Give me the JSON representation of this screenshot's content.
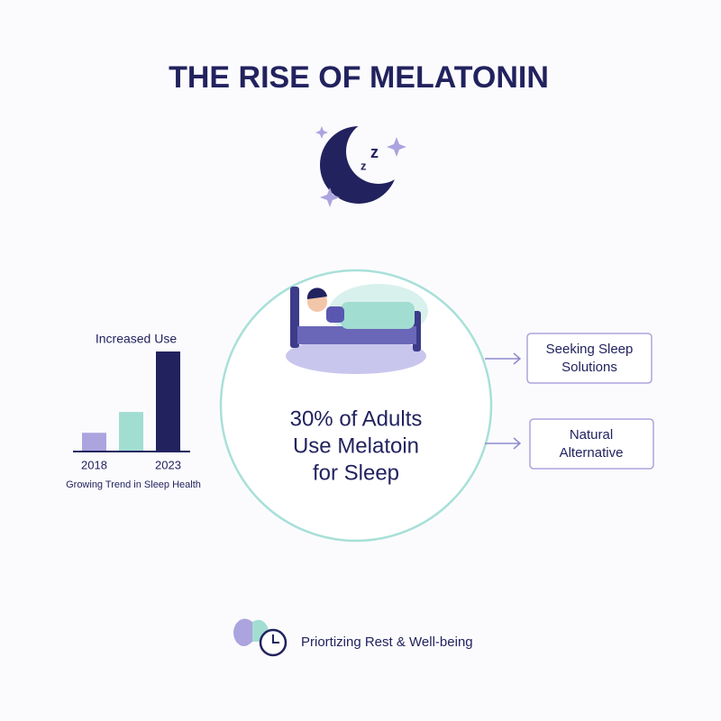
{
  "title": "THE RISE OF MELATONIN",
  "chart_data": {
    "type": "bar",
    "title": "Increased Use",
    "categories": [
      "2018",
      null,
      "2023"
    ],
    "values": [
      18,
      39,
      100
    ],
    "colors": [
      "#aba4de",
      "#a2ddd2",
      "#22225f"
    ],
    "ylim": [
      0,
      100
    ],
    "caption": "Growing Trend in Sleep Health"
  },
  "center": {
    "lines": [
      "30% of Adults",
      "Use Melatoin",
      "for Sleep"
    ]
  },
  "boxes": [
    [
      "Seeking Sleep",
      "Solutions"
    ],
    [
      "Natural",
      "Alternative"
    ]
  ],
  "footer": "Priortizing Rest & Well-being"
}
